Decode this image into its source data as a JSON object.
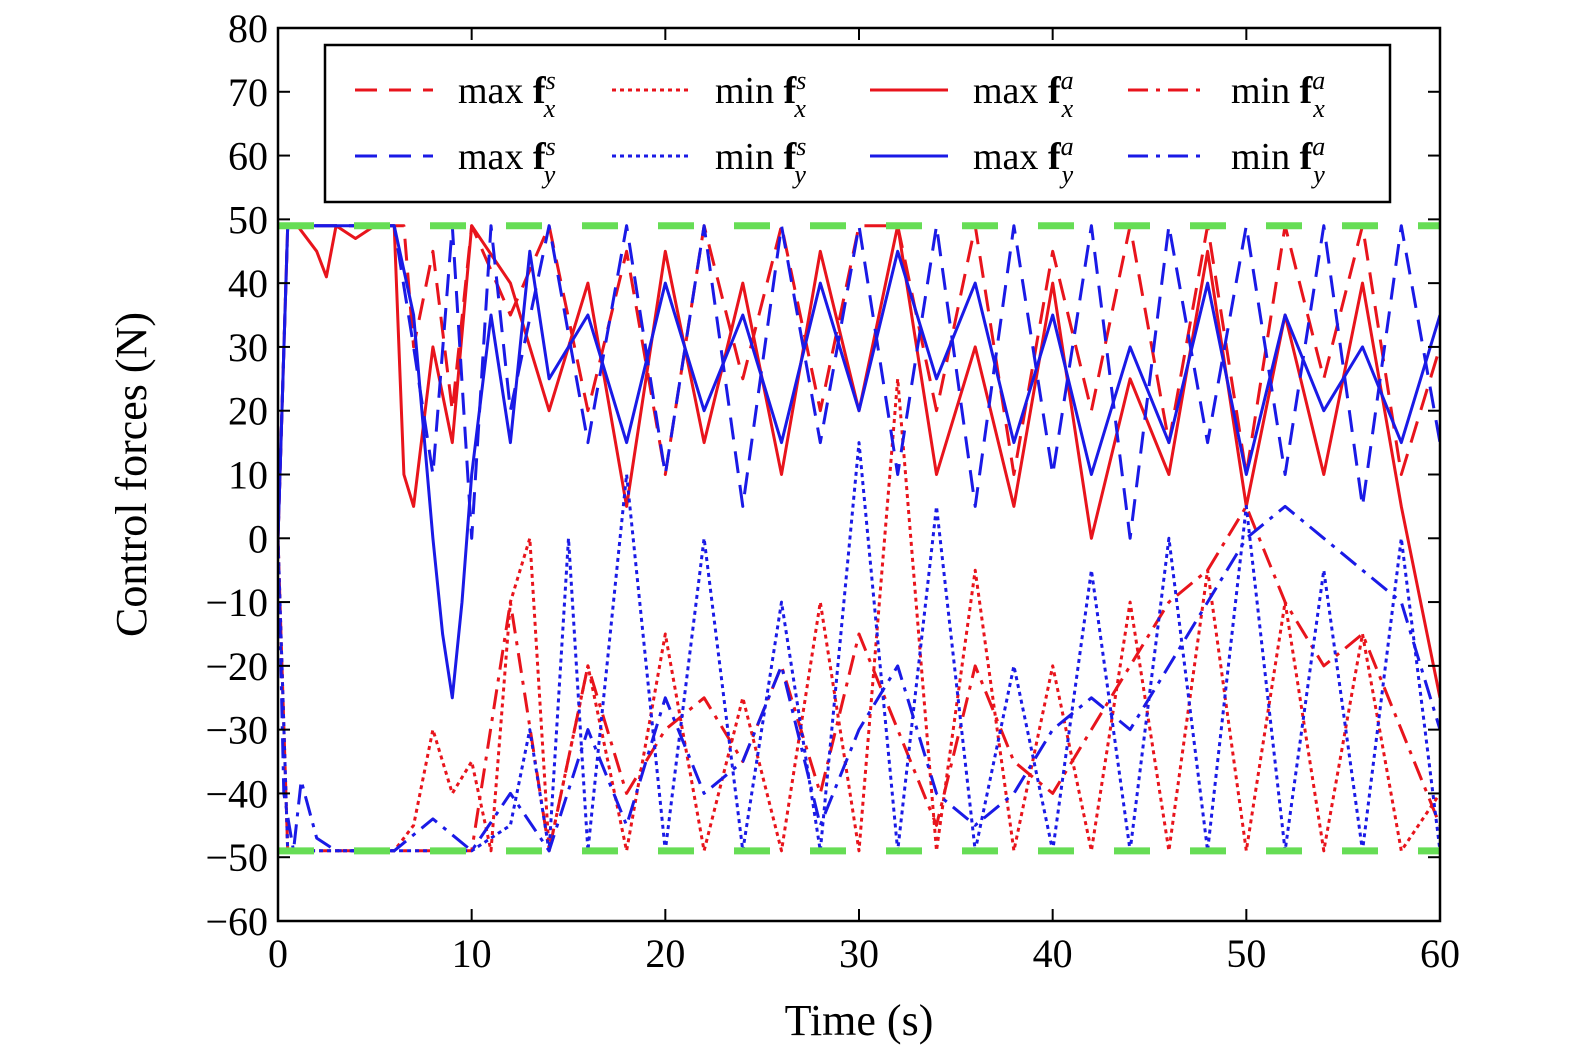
{
  "chart_data": {
    "type": "line",
    "title": "",
    "xlabel": "Time (s)",
    "ylabel": "Control forces (N)",
    "xlim": [
      0,
      60
    ],
    "ylim": [
      -60,
      80
    ],
    "xticks": [
      0,
      10,
      20,
      30,
      40,
      50,
      60
    ],
    "yticks": [
      -60,
      -50,
      -40,
      -30,
      -20,
      -10,
      0,
      10,
      20,
      30,
      40,
      50,
      60,
      70,
      80
    ],
    "xtick_labels": [
      "0",
      "10",
      "20",
      "30",
      "40",
      "50",
      "60"
    ],
    "ytick_labels": [
      "−60",
      "−50",
      "−40",
      "−30",
      "−20",
      "−10",
      "0",
      "10",
      "20",
      "30",
      "40",
      "50",
      "60",
      "70",
      "80"
    ],
    "grid": false,
    "legend_position": "top",
    "bounds": {
      "upper": 49,
      "lower": -49,
      "color": "#66dd55",
      "style": "dashed"
    },
    "series": [
      {
        "name": "max f^s_x",
        "prefix": "max",
        "sup": "s",
        "sub": "x",
        "color": "#e8141c",
        "style": "dashed",
        "x": [
          0,
          0.5,
          1,
          2,
          3,
          5,
          6.5,
          7,
          8,
          9,
          10,
          12,
          14,
          16,
          18,
          20,
          22,
          24,
          26,
          28,
          30,
          32,
          34,
          36,
          38,
          40,
          42,
          44,
          46,
          48,
          50,
          52,
          54,
          56,
          58,
          60
        ],
        "y": [
          0,
          49,
          49,
          49,
          49,
          49,
          49,
          30,
          45,
          20,
          49,
          35,
          49,
          20,
          45,
          10,
          49,
          25,
          49,
          20,
          49,
          49,
          20,
          49,
          10,
          45,
          20,
          49,
          15,
          49,
          10,
          49,
          25,
          49,
          10,
          30
        ]
      },
      {
        "name": "min f^s_x",
        "prefix": "min",
        "sup": "s",
        "sub": "x",
        "color": "#e8141c",
        "style": "dotted",
        "x": [
          0,
          0.5,
          1,
          3,
          6,
          7,
          8,
          9,
          10,
          11,
          12,
          13,
          14,
          16,
          18,
          20,
          22,
          24,
          26,
          28,
          30,
          32,
          34,
          36,
          38,
          40,
          42,
          44,
          46,
          48,
          50,
          52,
          54,
          56,
          58,
          60
        ],
        "y": [
          0,
          -49,
          -49,
          -49,
          -49,
          -45,
          -30,
          -40,
          -35,
          -49,
          -10,
          0,
          -49,
          -20,
          -49,
          -15,
          -49,
          -25,
          -49,
          -10,
          -49,
          25,
          -49,
          -5,
          -49,
          -20,
          -49,
          -10,
          -49,
          -5,
          -49,
          -10,
          -49,
          -15,
          -49,
          -40
        ]
      },
      {
        "name": "max f^a_x",
        "prefix": "max",
        "sup": "a",
        "sub": "x",
        "color": "#e8141c",
        "style": "solid",
        "x": [
          0,
          0.5,
          1,
          2,
          2.5,
          3,
          4,
          5,
          6,
          6.5,
          7,
          8,
          9,
          10,
          12,
          14,
          16,
          18,
          20,
          22,
          24,
          26,
          28,
          30,
          32,
          34,
          36,
          38,
          40,
          42,
          44,
          46,
          48,
          50,
          52,
          54,
          56,
          58,
          60
        ],
        "y": [
          0,
          49,
          49,
          45,
          41,
          49,
          47,
          49,
          49,
          10,
          5,
          30,
          15,
          49,
          40,
          20,
          40,
          5,
          45,
          15,
          40,
          10,
          45,
          20,
          49,
          10,
          30,
          5,
          40,
          0,
          25,
          10,
          45,
          5,
          35,
          10,
          40,
          5,
          -25
        ]
      },
      {
        "name": "min f^a_x",
        "prefix": "min",
        "sup": "a",
        "sub": "x",
        "color": "#e8141c",
        "style": "dashdot",
        "x": [
          0,
          0.5,
          1,
          3,
          6,
          8,
          10,
          12,
          14,
          16,
          18,
          20,
          22,
          24,
          26,
          28,
          30,
          32,
          34,
          36,
          38,
          40,
          42,
          44,
          46,
          48,
          50,
          52,
          54,
          56,
          58,
          60
        ],
        "y": [
          0,
          -49,
          -49,
          -49,
          -49,
          -49,
          -49,
          -10,
          -49,
          -20,
          -40,
          -30,
          -25,
          -35,
          -20,
          -40,
          -15,
          -30,
          -45,
          -20,
          -35,
          -40,
          -30,
          -20,
          -10,
          -5,
          5,
          -10,
          -20,
          -15,
          -30,
          -45
        ]
      },
      {
        "name": "max f^s_y",
        "prefix": "max",
        "sup": "s",
        "sub": "y",
        "color": "#1a1ae6",
        "style": "dashed",
        "x": [
          0,
          0.5,
          1,
          3,
          6,
          7,
          8,
          9,
          10,
          11,
          12,
          14,
          16,
          18,
          20,
          22,
          24,
          26,
          28,
          30,
          32,
          34,
          36,
          38,
          40,
          42,
          44,
          46,
          48,
          50,
          52,
          54,
          56,
          58,
          60
        ],
        "y": [
          0,
          49,
          49,
          49,
          49,
          30,
          10,
          49,
          0,
          49,
          20,
          49,
          15,
          49,
          10,
          49,
          5,
          49,
          15,
          49,
          10,
          49,
          5,
          49,
          10,
          49,
          0,
          49,
          15,
          49,
          10,
          49,
          5,
          49,
          15
        ]
      },
      {
        "name": "min f^s_y",
        "prefix": "min",
        "sup": "s",
        "sub": "y",
        "color": "#1a1ae6",
        "style": "dotted",
        "x": [
          0,
          0.5,
          1,
          3,
          6,
          8,
          10,
          12,
          13,
          14,
          15,
          16,
          18,
          20,
          22,
          24,
          26,
          28,
          30,
          32,
          34,
          36,
          38,
          40,
          42,
          44,
          46,
          48,
          50,
          52,
          54,
          56,
          58,
          60
        ],
        "y": [
          0,
          -49,
          -49,
          -49,
          -49,
          -49,
          -49,
          -45,
          -30,
          -49,
          0,
          -49,
          10,
          -49,
          0,
          -49,
          -10,
          -49,
          15,
          -49,
          5,
          -49,
          -20,
          -49,
          -5,
          -49,
          0,
          -49,
          5,
          -49,
          -5,
          -49,
          0,
          -49
        ]
      },
      {
        "name": "max f^a_y",
        "prefix": "max",
        "sup": "a",
        "sub": "y",
        "color": "#1a1ae6",
        "style": "solid",
        "x": [
          0,
          0.5,
          1,
          3,
          5,
          6,
          7,
          8,
          8.5,
          9,
          9.5,
          10,
          11,
          12,
          13,
          14,
          16,
          18,
          20,
          22,
          24,
          26,
          28,
          30,
          32,
          34,
          36,
          38,
          40,
          42,
          44,
          46,
          48,
          50,
          52,
          54,
          56,
          58,
          60
        ],
        "y": [
          0,
          49,
          49,
          49,
          49,
          49,
          35,
          0,
          -15,
          -25,
          -10,
          10,
          35,
          15,
          45,
          25,
          35,
          15,
          40,
          20,
          35,
          15,
          40,
          20,
          45,
          25,
          40,
          15,
          35,
          10,
          30,
          15,
          40,
          10,
          35,
          20,
          30,
          15,
          35
        ]
      },
      {
        "name": "min f^a_y",
        "prefix": "min",
        "sup": "a",
        "sub": "y",
        "color": "#1a1ae6",
        "style": "dashdot",
        "x": [
          0,
          0.3,
          0.8,
          1.2,
          2,
          3,
          5,
          6,
          8,
          10,
          12,
          14,
          16,
          18,
          20,
          22,
          24,
          26,
          28,
          30,
          32,
          34,
          36,
          38,
          40,
          42,
          44,
          46,
          48,
          50,
          52,
          54,
          56,
          58,
          60
        ],
        "y": [
          0,
          -40,
          -49,
          -38,
          -47,
          -49,
          -49,
          -49,
          -44,
          -49,
          -40,
          -49,
          -30,
          -45,
          -25,
          -40,
          -35,
          -20,
          -45,
          -30,
          -20,
          -40,
          -45,
          -40,
          -30,
          -25,
          -30,
          -20,
          -10,
          0,
          5,
          0,
          -5,
          -10,
          -30
        ]
      }
    ]
  }
}
